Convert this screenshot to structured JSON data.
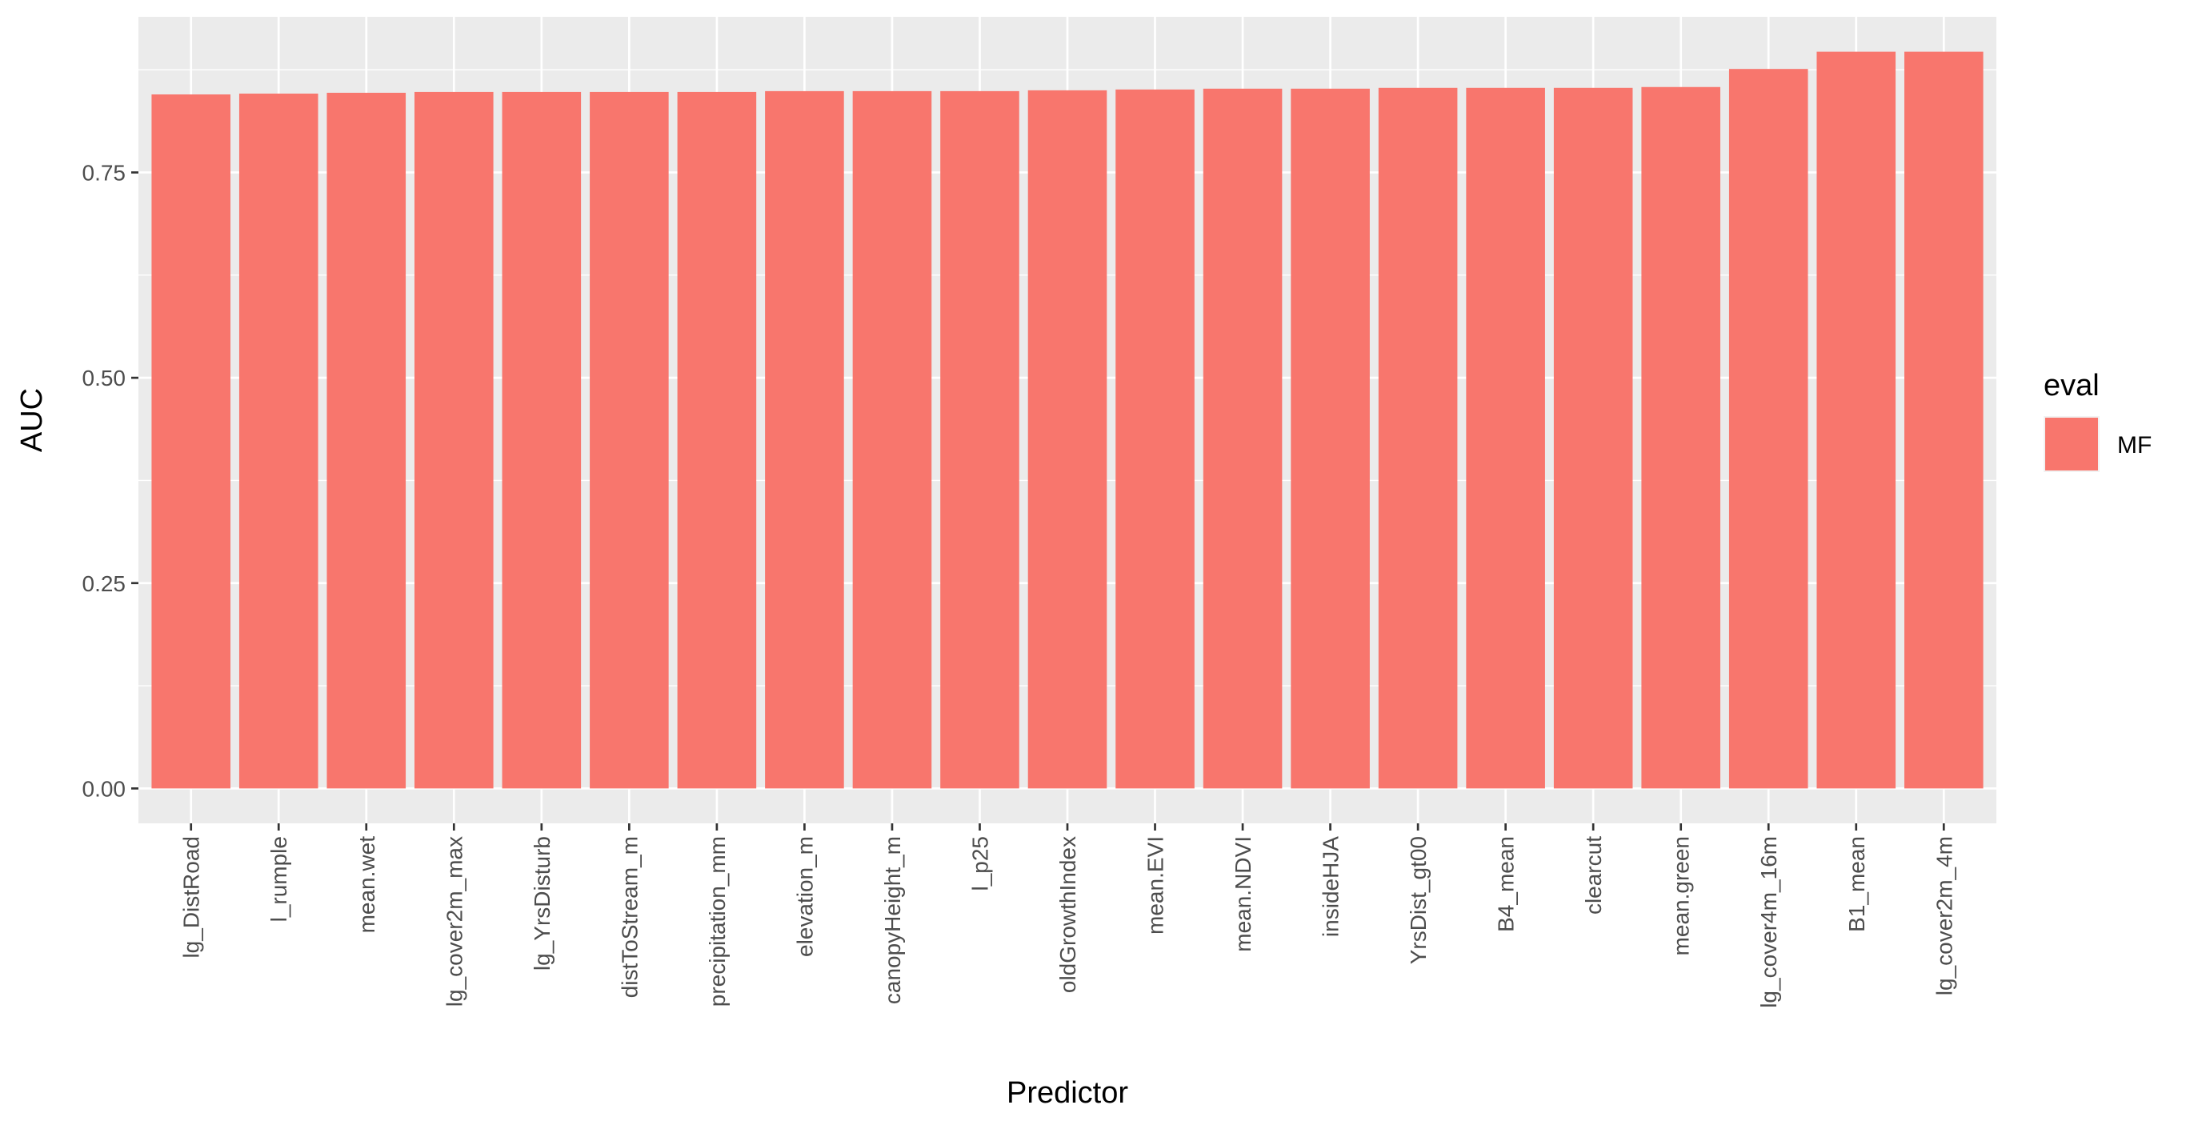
{
  "chart_data": {
    "type": "bar",
    "xlabel": "Predictor",
    "ylabel": "AUC",
    "categories": [
      "lg_DistRoad",
      "l_rumple",
      "mean.wet",
      "lg_cover2m_max",
      "lg_YrsDisturb",
      "distToStream_m",
      "precipitation_mm",
      "elevation_m",
      "canopyHeight_m",
      "l_p25",
      "oldGrowthIndex",
      "mean.EVI",
      "mean.NDVI",
      "insideHJA",
      "YrsDist_gt00",
      "B4_mean",
      "clearcut",
      "mean.green",
      "lg_cover4m_16m",
      "B1_mean",
      "lg_cover2m_4m"
    ],
    "series": [
      {
        "name": "MF",
        "color": "#F8766D",
        "values": [
          0.845,
          0.846,
          0.847,
          0.848,
          0.848,
          0.848,
          0.848,
          0.849,
          0.849,
          0.849,
          0.85,
          0.851,
          0.852,
          0.852,
          0.853,
          0.853,
          0.853,
          0.854,
          0.876,
          0.897,
          0.897
        ]
      }
    ],
    "ylim": [
      -0.0425,
      0.9395
    ],
    "yticks": [
      0.0,
      0.25,
      0.5,
      0.75
    ],
    "ytick_labels": [
      "0.00",
      "0.25",
      "0.50",
      "0.75"
    ],
    "grid": true,
    "legend": {
      "title": "eval",
      "position": "right"
    },
    "panel_background": "#EBEBEB",
    "grid_color": "#FFFFFF"
  }
}
